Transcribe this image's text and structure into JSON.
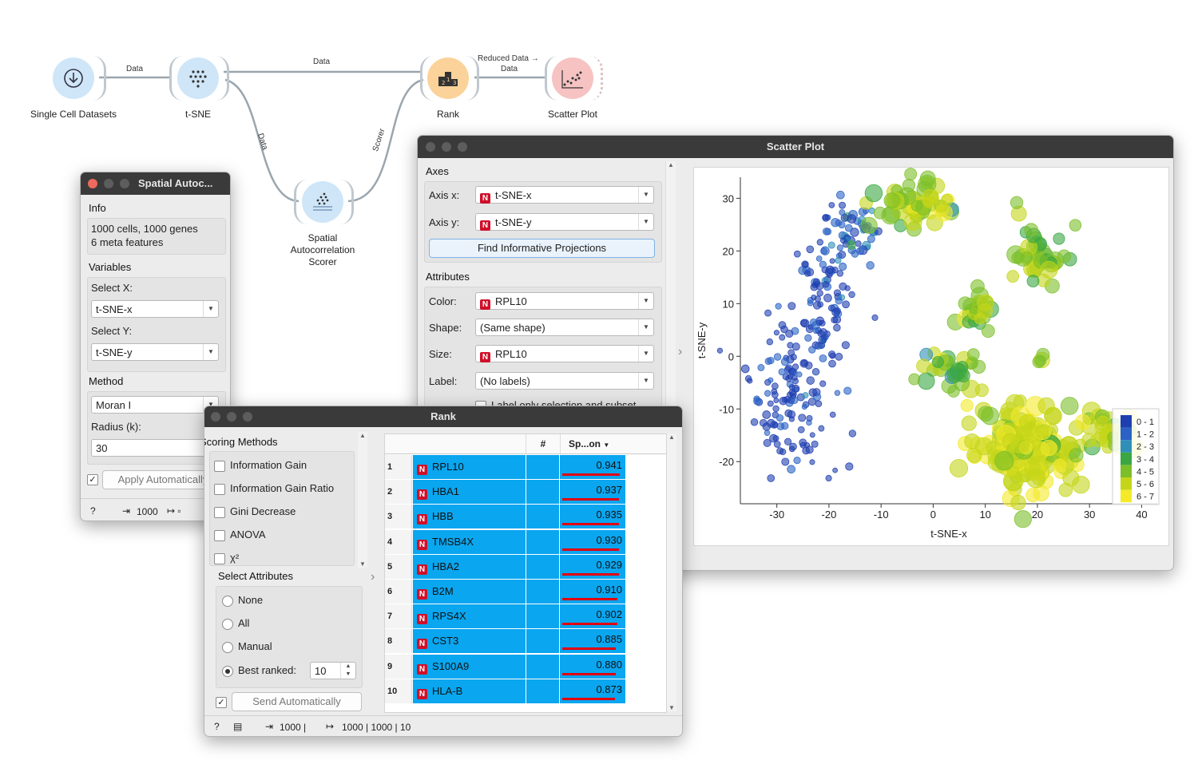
{
  "workflow": {
    "nodes": [
      {
        "label": "Single Cell Datasets"
      },
      {
        "label": "t-SNE"
      },
      {
        "label": "Rank"
      },
      {
        "label": "Scatter Plot"
      },
      {
        "label": "Spatial Autocorrelation Scorer",
        "lines": [
          "Spatial",
          "Autocorrelation",
          "Scorer"
        ]
      }
    ],
    "links": {
      "data1": "Data",
      "data2": "Data",
      "data3": "Data",
      "scorer": "Scorer",
      "reduced_line1": "Reduced Data →",
      "reduced_line2": "Data"
    },
    "colors": {
      "blue_node": "#cfe6f8",
      "orange_node": "#fbd29a",
      "pink_node": "#f6c2c2",
      "link": "#9aa6ae"
    }
  },
  "spatial": {
    "title": "Spatial Autoc...",
    "info_header": "Info",
    "info_line1": "1000 cells, 1000 genes",
    "info_line2": "6 meta features",
    "variables_header": "Variables",
    "select_x_label": "Select X:",
    "select_x_value": "t-SNE-x",
    "select_y_label": "Select Y:",
    "select_y_value": "t-SNE-y",
    "method_header": "Method",
    "method_value": "Moran I",
    "radius_label": "Radius (k):",
    "radius_value": "30",
    "apply_label": "Apply Automatically",
    "status_count": "1000",
    "help_icon": "?"
  },
  "scatter": {
    "title": "Scatter Plot",
    "axes_header": "Axes",
    "axis_x_label": "Axis x:",
    "axis_x_value": "t-SNE-x",
    "axis_y_label": "Axis y:",
    "axis_y_value": "t-SNE-y",
    "find_button": "Find Informative Projections",
    "attributes_header": "Attributes",
    "color_label": "Color:",
    "color_value": "RPL10",
    "shape_label": "Shape:",
    "shape_value": "(Same shape)",
    "size_label": "Size:",
    "size_value": "RPL10",
    "label_label": "Label:",
    "label_value": "(No labels)",
    "cutoff_text": "Label only selection and subset"
  },
  "chart_data": {
    "type": "scatter",
    "xlabel": "t-SNE-x",
    "ylabel": "t-SNE-y",
    "xlim": [
      -37,
      43
    ],
    "ylim": [
      -28,
      34
    ],
    "xticks": [
      -30,
      -20,
      -10,
      0,
      10,
      20,
      30,
      40
    ],
    "yticks": [
      -20,
      -10,
      0,
      10,
      20,
      30
    ],
    "legend_position": "bottom-right",
    "legend": [
      {
        "label": "0 - 1",
        "color": "#1f3fb0"
      },
      {
        "label": "1 - 2",
        "color": "#2a63c5"
      },
      {
        "label": "2 - 3",
        "color": "#2f8fb8"
      },
      {
        "label": "3 - 4",
        "color": "#3aa742"
      },
      {
        "label": "4 - 5",
        "color": "#7cbf2a"
      },
      {
        "label": "5 - 6",
        "color": "#c4d619"
      },
      {
        "label": "6 - 7",
        "color": "#f4ea2a"
      }
    ],
    "clusters": [
      {
        "cx": -27,
        "cy": -7,
        "sx": 4,
        "sy": 7,
        "n": 130,
        "value": 0.5,
        "r": 4
      },
      {
        "cx": -21,
        "cy": 10,
        "sx": 3,
        "sy": 7,
        "n": 90,
        "value": 0.7,
        "r": 4
      },
      {
        "cx": -16,
        "cy": 23,
        "sx": 3,
        "sy": 3,
        "n": 50,
        "value": 1.3,
        "r": 4.5
      },
      {
        "cx": -4,
        "cy": 29,
        "sx": 5,
        "sy": 2,
        "n": 55,
        "value": 5.2,
        "r": 9
      },
      {
        "cx": 20,
        "cy": 19,
        "sx": 3,
        "sy": 4,
        "n": 40,
        "value": 4.5,
        "r": 9
      },
      {
        "cx": 8.5,
        "cy": 9,
        "sx": 2,
        "sy": 2,
        "n": 25,
        "value": 4.6,
        "r": 9
      },
      {
        "cx": 4,
        "cy": -2,
        "sx": 4,
        "sy": 1.6,
        "n": 30,
        "value": 4.6,
        "r": 9
      },
      {
        "cx": 21,
        "cy": -0.5,
        "sx": 0.6,
        "sy": 0.8,
        "n": 4,
        "value": 4.4,
        "r": 9
      },
      {
        "cx": 18,
        "cy": -18,
        "sx": 5,
        "sy": 4,
        "n": 170,
        "value": 5.7,
        "r": 10
      },
      {
        "cx": 34,
        "cy": -14.5,
        "sx": 3,
        "sy": 2,
        "n": 35,
        "value": 5.3,
        "r": 9
      }
    ]
  },
  "rank": {
    "title": "Rank",
    "scoring_header": "Scoring Methods",
    "methods": [
      {
        "label": "Information Gain",
        "checked": false
      },
      {
        "label": "Information Gain Ratio",
        "checked": false
      },
      {
        "label": "Gini Decrease",
        "checked": false
      },
      {
        "label": "ANOVA",
        "checked": false
      },
      {
        "label": "χ²",
        "checked": false
      }
    ],
    "select_header": "Select Attributes",
    "options": [
      {
        "label": "None",
        "selected": false
      },
      {
        "label": "All",
        "selected": false
      },
      {
        "label": "Manual",
        "selected": false
      },
      {
        "label": "Best ranked:",
        "selected": true
      }
    ],
    "best_value": "10",
    "send_label": "Send Automatically",
    "col_hash": "#",
    "col_score": "Sp...on",
    "rows": [
      {
        "n": "1",
        "name": "RPL10",
        "score": "0.941",
        "frac": 0.941
      },
      {
        "n": "2",
        "name": "HBA1",
        "score": "0.937",
        "frac": 0.937
      },
      {
        "n": "3",
        "name": "HBB",
        "score": "0.935",
        "frac": 0.935
      },
      {
        "n": "4",
        "name": "TMSB4X",
        "score": "0.930",
        "frac": 0.93
      },
      {
        "n": "5",
        "name": "HBA2",
        "score": "0.929",
        "frac": 0.929
      },
      {
        "n": "6",
        "name": "B2M",
        "score": "0.910",
        "frac": 0.91
      },
      {
        "n": "7",
        "name": "RPS4X",
        "score": "0.902",
        "frac": 0.902
      },
      {
        "n": "8",
        "name": "CST3",
        "score": "0.885",
        "frac": 0.885
      },
      {
        "n": "9",
        "name": "S100A9",
        "score": "0.880",
        "frac": 0.88
      },
      {
        "n": "10",
        "name": "HLA-B",
        "score": "0.873",
        "frac": 0.873
      }
    ],
    "status_in": "1000 |",
    "status_out": "1000 | 1000 | 10",
    "badge": "N",
    "colors": {
      "selected_row": "#0aa6ef",
      "score_bar": "#e3000f"
    }
  }
}
